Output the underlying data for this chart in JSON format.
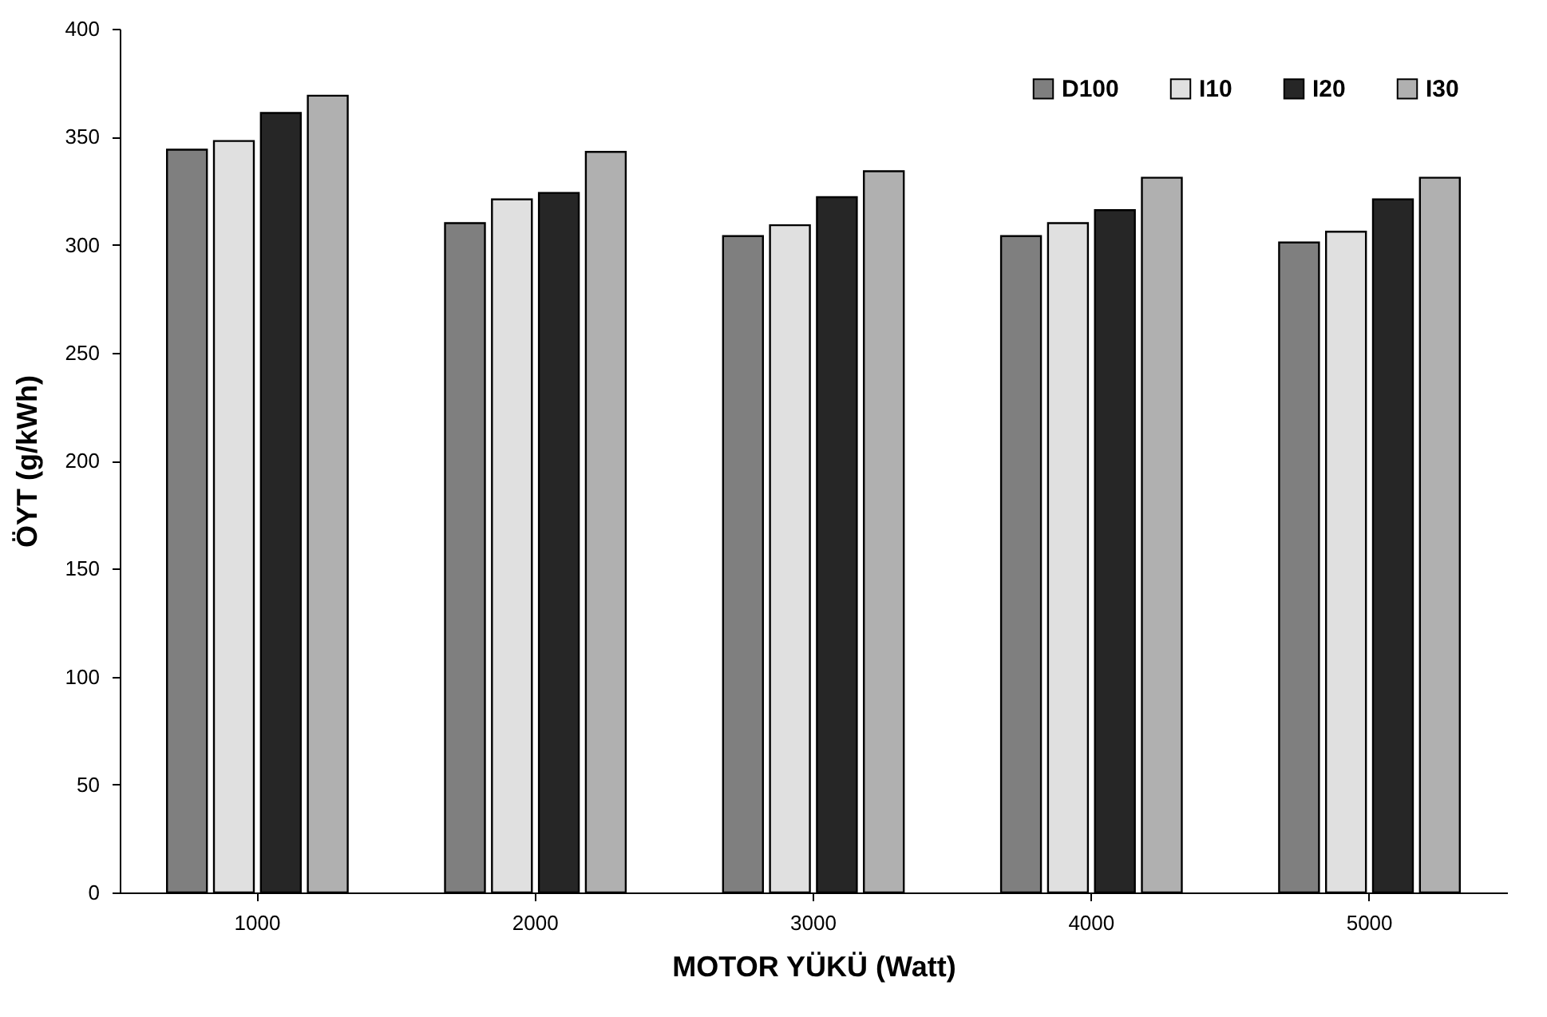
{
  "chart_data": {
    "type": "bar",
    "xlabel": "MOTOR YÜKÜ (Watt)",
    "ylabel": "ÖYT (g/kWh)",
    "categories": [
      "1000",
      "2000",
      "3000",
      "4000",
      "5000"
    ],
    "series": [
      {
        "name": "D100",
        "color": "#7f7f7f",
        "values": [
          344,
          310,
          304,
          304,
          301
        ]
      },
      {
        "name": "I10",
        "color": "#e0e0e0",
        "values": [
          348,
          321,
          309,
          310,
          306
        ]
      },
      {
        "name": "I20",
        "color": "#262626",
        "values": [
          361,
          324,
          322,
          316,
          321
        ]
      },
      {
        "name": "I30",
        "color": "#b0b0b0",
        "values": [
          369,
          343,
          334,
          331,
          331
        ]
      }
    ],
    "ylim": [
      0,
      400
    ],
    "yticks": [
      0,
      50,
      100,
      150,
      200,
      250,
      300,
      350,
      400
    ],
    "grid": false,
    "legend": "top right"
  }
}
